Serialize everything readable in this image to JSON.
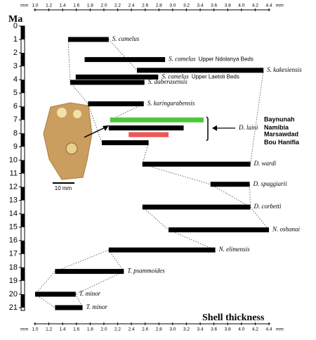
{
  "chart_data": {
    "type": "range_bar",
    "y_title": "Ma",
    "x_title": "Shell thickness",
    "x_unit": "mm",
    "xlim": [
      1.0,
      4.4
    ],
    "ylim": [
      0,
      21
    ],
    "xticks": [
      {
        "value": 1,
        "label": "1.0"
      },
      1.2,
      1.4,
      1.6,
      1.8,
      {
        "value": 2,
        "label": "2.0"
      },
      2.2,
      2.4,
      2.6,
      2.8,
      {
        "value": 3,
        "label": "3.0"
      },
      3.2,
      3.4,
      3.6,
      3.8,
      {
        "value": 4,
        "label": "4.0"
      },
      4.2,
      4.4
    ],
    "yticks": [
      0,
      1,
      2,
      3,
      4,
      5,
      6,
      7,
      8,
      9,
      10,
      11,
      12,
      13,
      14,
      15,
      16,
      17,
      18,
      19,
      20,
      21
    ],
    "group_label": "D. laini",
    "scale_label": "10 mm",
    "bars": [
      {
        "name": "S. camelus",
        "start": 1.48,
        "end": 2.07,
        "age": 1.0,
        "color": "#000000"
      },
      {
        "name": "S. camelus",
        "note": "Upper Ndolanya Beds",
        "start": 1.72,
        "end": 2.89,
        "age": 2.5,
        "color": "#000000"
      },
      {
        "name": "S. kakesiensis",
        "start": 2.48,
        "end": 4.32,
        "age": 3.3,
        "color": "#000000"
      },
      {
        "name": "S. camelus",
        "note": "Upper Laetoli Beds",
        "start": 1.59,
        "end": 2.79,
        "age": 3.8,
        "color": "#000000"
      },
      {
        "name": "S. daberasensis",
        "start": 1.51,
        "end": 2.59,
        "age": 4.2,
        "color": "#000000"
      },
      {
        "name": "S. karingarabensis",
        "start": 1.77,
        "end": 2.58,
        "age": 5.8,
        "color": "#000000"
      },
      {
        "note": "Baynunah",
        "start": 2.09,
        "end": 3.45,
        "age": 7.0,
        "color": "#4cc93a"
      },
      {
        "note": "Namibia",
        "start": 2.07,
        "end": 3.16,
        "age": 7.6,
        "color": "#000000"
      },
      {
        "note": "Marsawdad",
        "start": 2.36,
        "end": 2.94,
        "age": 8.1,
        "color": "#f05656"
      },
      {
        "note": "Bou Hanifia",
        "start": 1.97,
        "end": 2.65,
        "age": 8.7,
        "color": "#000000"
      },
      {
        "name": "D. wardi",
        "start": 2.56,
        "end": 4.13,
        "age": 10.3,
        "color": "#000000"
      },
      {
        "name": "D. spaggiarii",
        "start": 3.55,
        "end": 4.12,
        "age": 11.8,
        "color": "#000000"
      },
      {
        "name": "D. corbetti",
        "start": 2.56,
        "end": 4.13,
        "age": 13.5,
        "color": "#000000"
      },
      {
        "name": "N. oshanai",
        "start": 2.94,
        "end": 4.4,
        "age": 15.2,
        "color": "#000000"
      },
      {
        "name": "N. elimensis",
        "start": 2.07,
        "end": 3.62,
        "age": 16.7,
        "color": "#000000"
      },
      {
        "name": "T. psammoides",
        "start": 1.29,
        "end": 2.29,
        "age": 18.3,
        "color": "#000000"
      },
      {
        "name": "T. minor",
        "start": 1.0,
        "end": 1.59,
        "age": 20.0,
        "color": "#000000"
      },
      {
        "name": "T. minor",
        "start": 1.29,
        "end": 1.69,
        "age": 21.0,
        "color": "#000000"
      }
    ]
  }
}
